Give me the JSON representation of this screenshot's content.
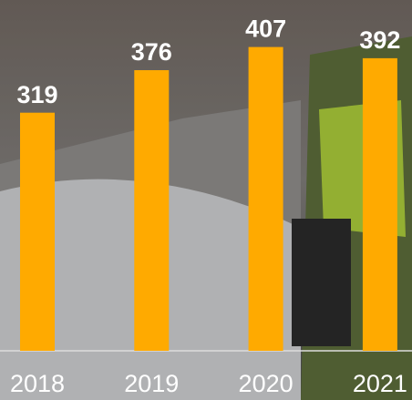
{
  "chart_data": {
    "type": "bar",
    "categories": [
      "2018",
      "2019",
      "2020",
      "2021"
    ],
    "values": [
      319,
      376,
      407,
      392
    ],
    "color": "#ffaa00",
    "ylim": [
      0,
      470
    ]
  }
}
